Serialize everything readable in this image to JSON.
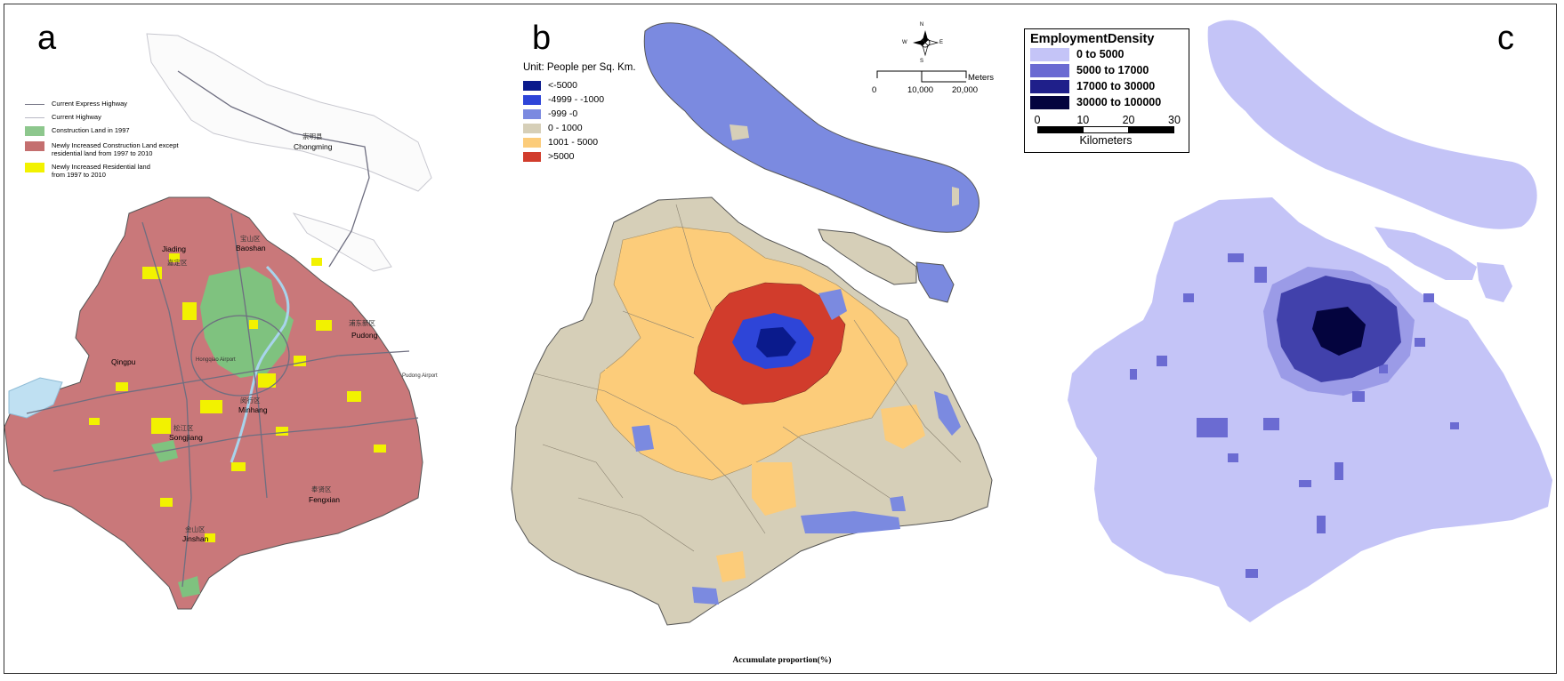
{
  "panels": {
    "a": {
      "letter": "a",
      "legend": [
        {
          "label": "Current Express Highway",
          "kind": "line",
          "color": "#7a7a8a"
        },
        {
          "label": "Current Highway",
          "kind": "line",
          "color": "#b9b9c4"
        },
        {
          "label": "Construction Land in 1997",
          "kind": "swatch",
          "color": "#8dc78d"
        },
        {
          "label": "Newly Increased Construction Land except residential land from 1997 to 2010",
          "kind": "swatch",
          "color": "#c46f6f"
        },
        {
          "label": "Newly Increased Residential land from 1997 to 2010",
          "kind": "swatch",
          "color": "#f2f200"
        }
      ],
      "places": {
        "chongming_cn": "崇明县",
        "chongming": "Chongming",
        "baoshan_cn": "宝山区",
        "baoshan": "Baoshan",
        "jiading": "Jiading",
        "jiading_cn": "嘉定区",
        "pudong_cn": "浦东新区",
        "pudong": "Pudong",
        "qingpu": "Qingpu",
        "hongqiao": "Hongqiao Airport",
        "pudong_airport": "Pudong Airport",
        "minhang_cn": "闵行区",
        "minhang": "Minhang",
        "songjiang_cn": "松江区",
        "songjiang": "Songjiang",
        "fengxian_cn": "奉贤区",
        "fengxian": "Fengxian",
        "jinshan_cn": "金山区",
        "jinshan": "Jinshan"
      }
    },
    "b": {
      "letter": "b",
      "unit": "Unit: People per Sq. Km.",
      "legend": [
        {
          "label": "<-5000",
          "color": "#0a1a8c"
        },
        {
          "label": "-4999 - -1000",
          "color": "#2e45d8"
        },
        {
          "label": "-999 -0",
          "color": "#7b8ae0"
        },
        {
          "label": "0 - 1000",
          "color": "#d6cfb8"
        },
        {
          "label": "1001 - 5000",
          "color": "#fccc7a"
        },
        {
          "label": ">5000",
          "color": "#d13c2c"
        }
      ],
      "north_arrow": "compass-rose-icon",
      "compass": {
        "n": "N",
        "s": "S",
        "e": "E",
        "w": "W"
      },
      "scale": {
        "ticks": [
          "0",
          "10,000",
          "20,000"
        ],
        "unit": "Meters"
      }
    },
    "c": {
      "letter": "c",
      "legend_title": "EmploymentDensity",
      "legend": [
        {
          "label": "0 to 5000",
          "color": "#c4c4f7"
        },
        {
          "label": "5000 to 17000",
          "color": "#6b6bd2"
        },
        {
          "label": "17000 to 30000",
          "color": "#1f1f8a"
        },
        {
          "label": "30000 to 100000",
          "color": "#04043e"
        }
      ],
      "scale": {
        "ticks": [
          "0",
          "10",
          "20",
          "30"
        ],
        "unit": "Kilometers"
      }
    }
  },
  "footer": "Accumulate proportion(%)"
}
